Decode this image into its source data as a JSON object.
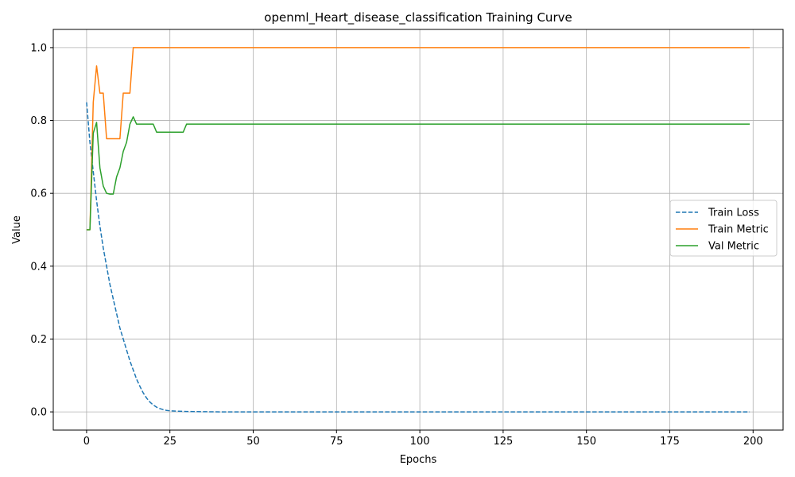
{
  "chart_data": {
    "type": "line",
    "title": "openml_Heart_disease_classification Training Curve",
    "xlabel": "Epochs",
    "ylabel": "Value",
    "xlim": [
      -10,
      209
    ],
    "ylim": [
      -0.05,
      1.05
    ],
    "xticks": [
      0,
      25,
      50,
      75,
      100,
      125,
      150,
      175,
      200
    ],
    "yticks": [
      0.0,
      0.2,
      0.4,
      0.6,
      0.8,
      1.0
    ],
    "xtick_labels": [
      "0",
      "25",
      "50",
      "75",
      "100",
      "125",
      "150",
      "175",
      "200"
    ],
    "ytick_labels": [
      "0.0",
      "0.2",
      "0.4",
      "0.6",
      "0.8",
      "1.0"
    ],
    "grid": true,
    "legend_position": "center-right",
    "series": [
      {
        "name": "Train Loss",
        "color": "#1f77b4",
        "style": "dashed",
        "x": [
          0,
          1,
          2,
          3,
          4,
          5,
          6,
          7,
          8,
          9,
          10,
          11,
          12,
          13,
          14,
          15,
          16,
          17,
          18,
          19,
          20,
          21,
          22,
          23,
          24,
          25,
          27,
          30,
          35,
          40,
          50,
          100,
          150,
          199
        ],
        "y": [
          0.85,
          0.74,
          0.66,
          0.58,
          0.51,
          0.45,
          0.4,
          0.35,
          0.31,
          0.27,
          0.23,
          0.2,
          0.17,
          0.14,
          0.115,
          0.09,
          0.07,
          0.052,
          0.038,
          0.027,
          0.019,
          0.013,
          0.009,
          0.006,
          0.004,
          0.003,
          0.002,
          0.001,
          0.0005,
          0.0,
          0.0,
          0.0,
          0.0,
          0.0
        ]
      },
      {
        "name": "Train Metric",
        "color": "#ff7f0e",
        "style": "solid",
        "x": [
          0,
          1,
          2,
          3,
          4,
          5,
          6,
          7,
          8,
          9,
          10,
          11,
          12,
          13,
          14,
          15,
          20,
          50,
          100,
          150,
          199
        ],
        "y": [
          0.5,
          0.5,
          0.85,
          0.95,
          0.875,
          0.875,
          0.75,
          0.75,
          0.75,
          0.75,
          0.75,
          0.875,
          0.875,
          0.875,
          1.0,
          1.0,
          1.0,
          1.0,
          1.0,
          1.0,
          1.0
        ]
      },
      {
        "name": "Val Metric",
        "color": "#2ca02c",
        "style": "solid",
        "x": [
          0,
          1,
          2,
          3,
          4,
          5,
          6,
          7,
          8,
          9,
          10,
          11,
          12,
          13,
          14,
          15,
          16,
          17,
          18,
          19,
          20,
          21,
          22,
          25,
          29,
          30,
          31,
          50,
          100,
          150,
          199
        ],
        "y": [
          0.5,
          0.5,
          0.765,
          0.795,
          0.67,
          0.62,
          0.6,
          0.598,
          0.598,
          0.645,
          0.67,
          0.715,
          0.74,
          0.79,
          0.81,
          0.79,
          0.79,
          0.79,
          0.79,
          0.79,
          0.79,
          0.768,
          0.768,
          0.768,
          0.768,
          0.79,
          0.79,
          0.79,
          0.79,
          0.79,
          0.79
        ]
      }
    ]
  }
}
